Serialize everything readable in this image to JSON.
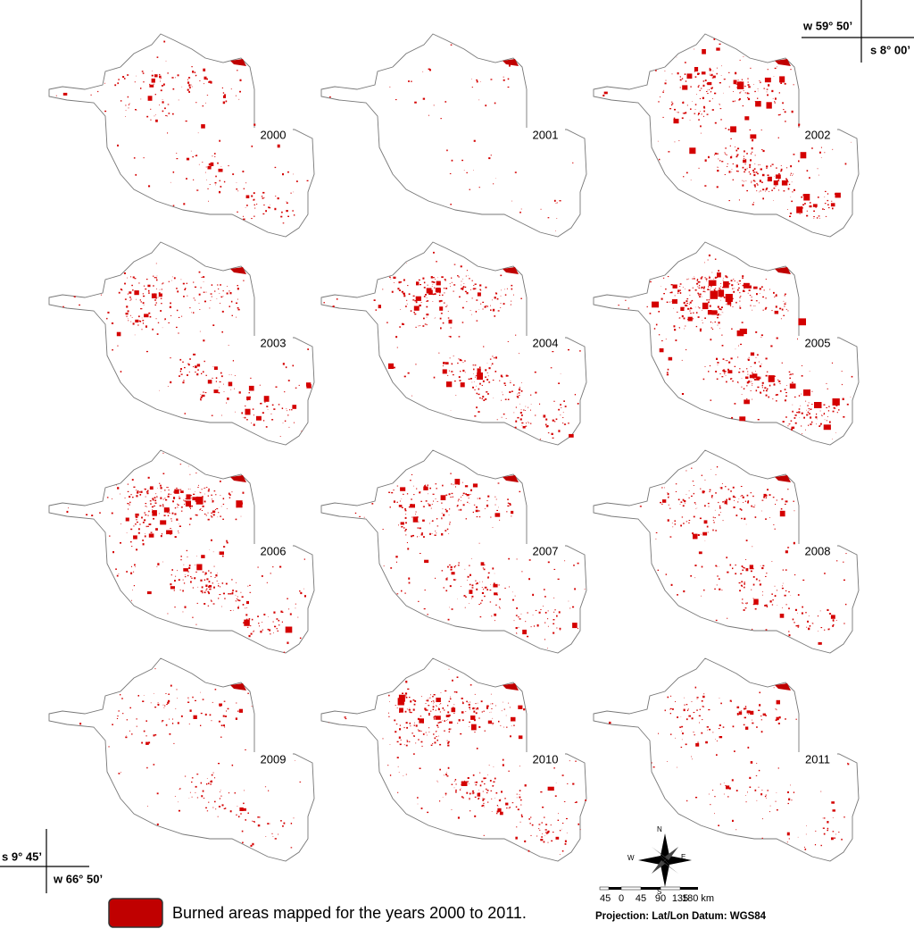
{
  "corner_labels": {
    "top_right_lon": "w 59° 50’",
    "top_right_lat": "s 8° 00’",
    "bottom_left_lat": "s 9° 45’",
    "bottom_left_lon": "w 66° 50’"
  },
  "maps": [
    {
      "year": "2000"
    },
    {
      "year": "2001"
    },
    {
      "year": "2002"
    },
    {
      "year": "2003"
    },
    {
      "year": "2004"
    },
    {
      "year": "2005"
    },
    {
      "year": "2006"
    },
    {
      "year": "2007"
    },
    {
      "year": "2008"
    },
    {
      "year": "2009"
    },
    {
      "year": "2010"
    },
    {
      "year": "2011"
    }
  ],
  "legend": {
    "label": "Burned areas mapped for the years 2000 to 2011."
  },
  "compass": {
    "n": "N",
    "s": "S",
    "e": "E",
    "w": "W"
  },
  "scale_bar": {
    "labels": [
      "45",
      "0",
      "45",
      "90",
      "135",
      "180 km"
    ]
  },
  "projection": "Projection: Lat/Lon Datum: WGS84"
}
